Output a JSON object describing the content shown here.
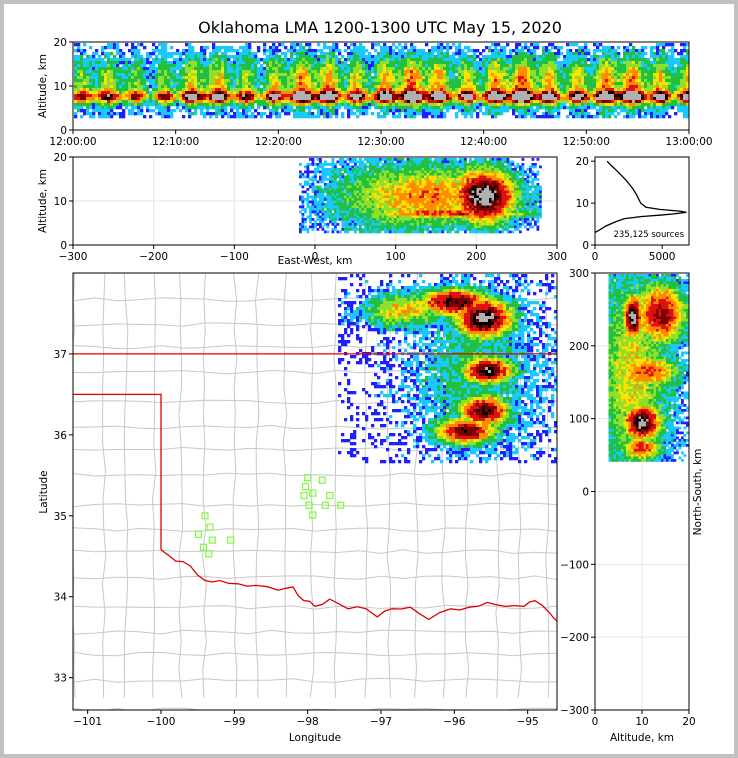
{
  "title": "Oklahoma LMA 1200-1300 UTC May 15, 2020",
  "colors": {
    "state_border": "#e00000",
    "county_border": "#c8c8c8",
    "station": "#7cfc3c",
    "grid": "#e6e6e6"
  },
  "chart_data": [
    {
      "id": "time-height",
      "type": "heatmap",
      "ylabel": "Altitude, km",
      "ylim": [
        0,
        20
      ],
      "yticks": [
        "0",
        "10",
        "20"
      ],
      "xticks": [
        "12:00:00",
        "12:10:00",
        "12:20:00",
        "12:30:00",
        "12:40:00",
        "12:50:00",
        "13:00:00"
      ]
    },
    {
      "id": "east-west-altitude",
      "type": "heatmap",
      "xlabel": "East-West, km",
      "ylabel": "Altitude, km",
      "xlim": [
        -300,
        300
      ],
      "ylim": [
        0,
        20
      ],
      "xticks": [
        "−300",
        "−200",
        "−100",
        "0",
        "100",
        "200",
        "300"
      ],
      "yticks": [
        "0",
        "10",
        "20"
      ]
    },
    {
      "id": "altitude-histogram",
      "type": "line",
      "annotation": "235,125 sources",
      "xlim": [
        0,
        7000
      ],
      "ylim": [
        0,
        21
      ],
      "xticks": [
        "0",
        "5000"
      ],
      "yticks": [
        "0",
        "10",
        "20"
      ],
      "points": [
        [
          0,
          3
        ],
        [
          300,
          3.5
        ],
        [
          800,
          4.5
        ],
        [
          1500,
          5.5
        ],
        [
          2200,
          6.3
        ],
        [
          3500,
          6.8
        ],
        [
          4800,
          7.1
        ],
        [
          5800,
          7.4
        ],
        [
          6800,
          7.8
        ],
        [
          6300,
          8.1
        ],
        [
          4800,
          8.5
        ],
        [
          3800,
          9
        ],
        [
          3400,
          10
        ],
        [
          3100,
          12
        ],
        [
          2800,
          13.5
        ],
        [
          2300,
          15.5
        ],
        [
          1700,
          17.5
        ],
        [
          1200,
          19
        ],
        [
          900,
          20
        ]
      ]
    },
    {
      "id": "plan-view",
      "type": "heatmap",
      "xlabel": "Longitude",
      "ylabel": "Latitude",
      "xlim": [
        -101.2,
        -94.6
      ],
      "ylim": [
        32.6,
        38
      ],
      "xticks": [
        "−101",
        "−100",
        "−99",
        "−98",
        "−97",
        "−96",
        "−95"
      ],
      "yticks": [
        "33",
        "34",
        "35",
        "36",
        "37"
      ],
      "stations": [
        [
          -99.4,
          35.0
        ],
        [
          -99.33,
          34.86
        ],
        [
          -99.49,
          34.77
        ],
        [
          -99.3,
          34.7
        ],
        [
          -99.05,
          34.7
        ],
        [
          -99.42,
          34.61
        ],
        [
          -99.35,
          34.53
        ],
        [
          -98.0,
          35.47
        ],
        [
          -97.8,
          35.44
        ],
        [
          -98.03,
          35.36
        ],
        [
          -97.93,
          35.28
        ],
        [
          -98.05,
          35.25
        ],
        [
          -97.7,
          35.25
        ],
        [
          -97.98,
          35.13
        ],
        [
          -97.76,
          35.13
        ],
        [
          -97.55,
          35.13
        ],
        [
          -97.93,
          35.01
        ]
      ]
    },
    {
      "id": "altitude-north-south",
      "type": "heatmap",
      "xlabel": "Altitude, km",
      "ylabel": "North-South, km",
      "xlim": [
        0,
        20
      ],
      "ylim": [
        -300,
        300
      ],
      "xticks": [
        "0",
        "10",
        "20"
      ],
      "yticks": [
        "−300",
        "−200",
        "−100",
        "0",
        "100",
        "200",
        "300"
      ]
    }
  ]
}
